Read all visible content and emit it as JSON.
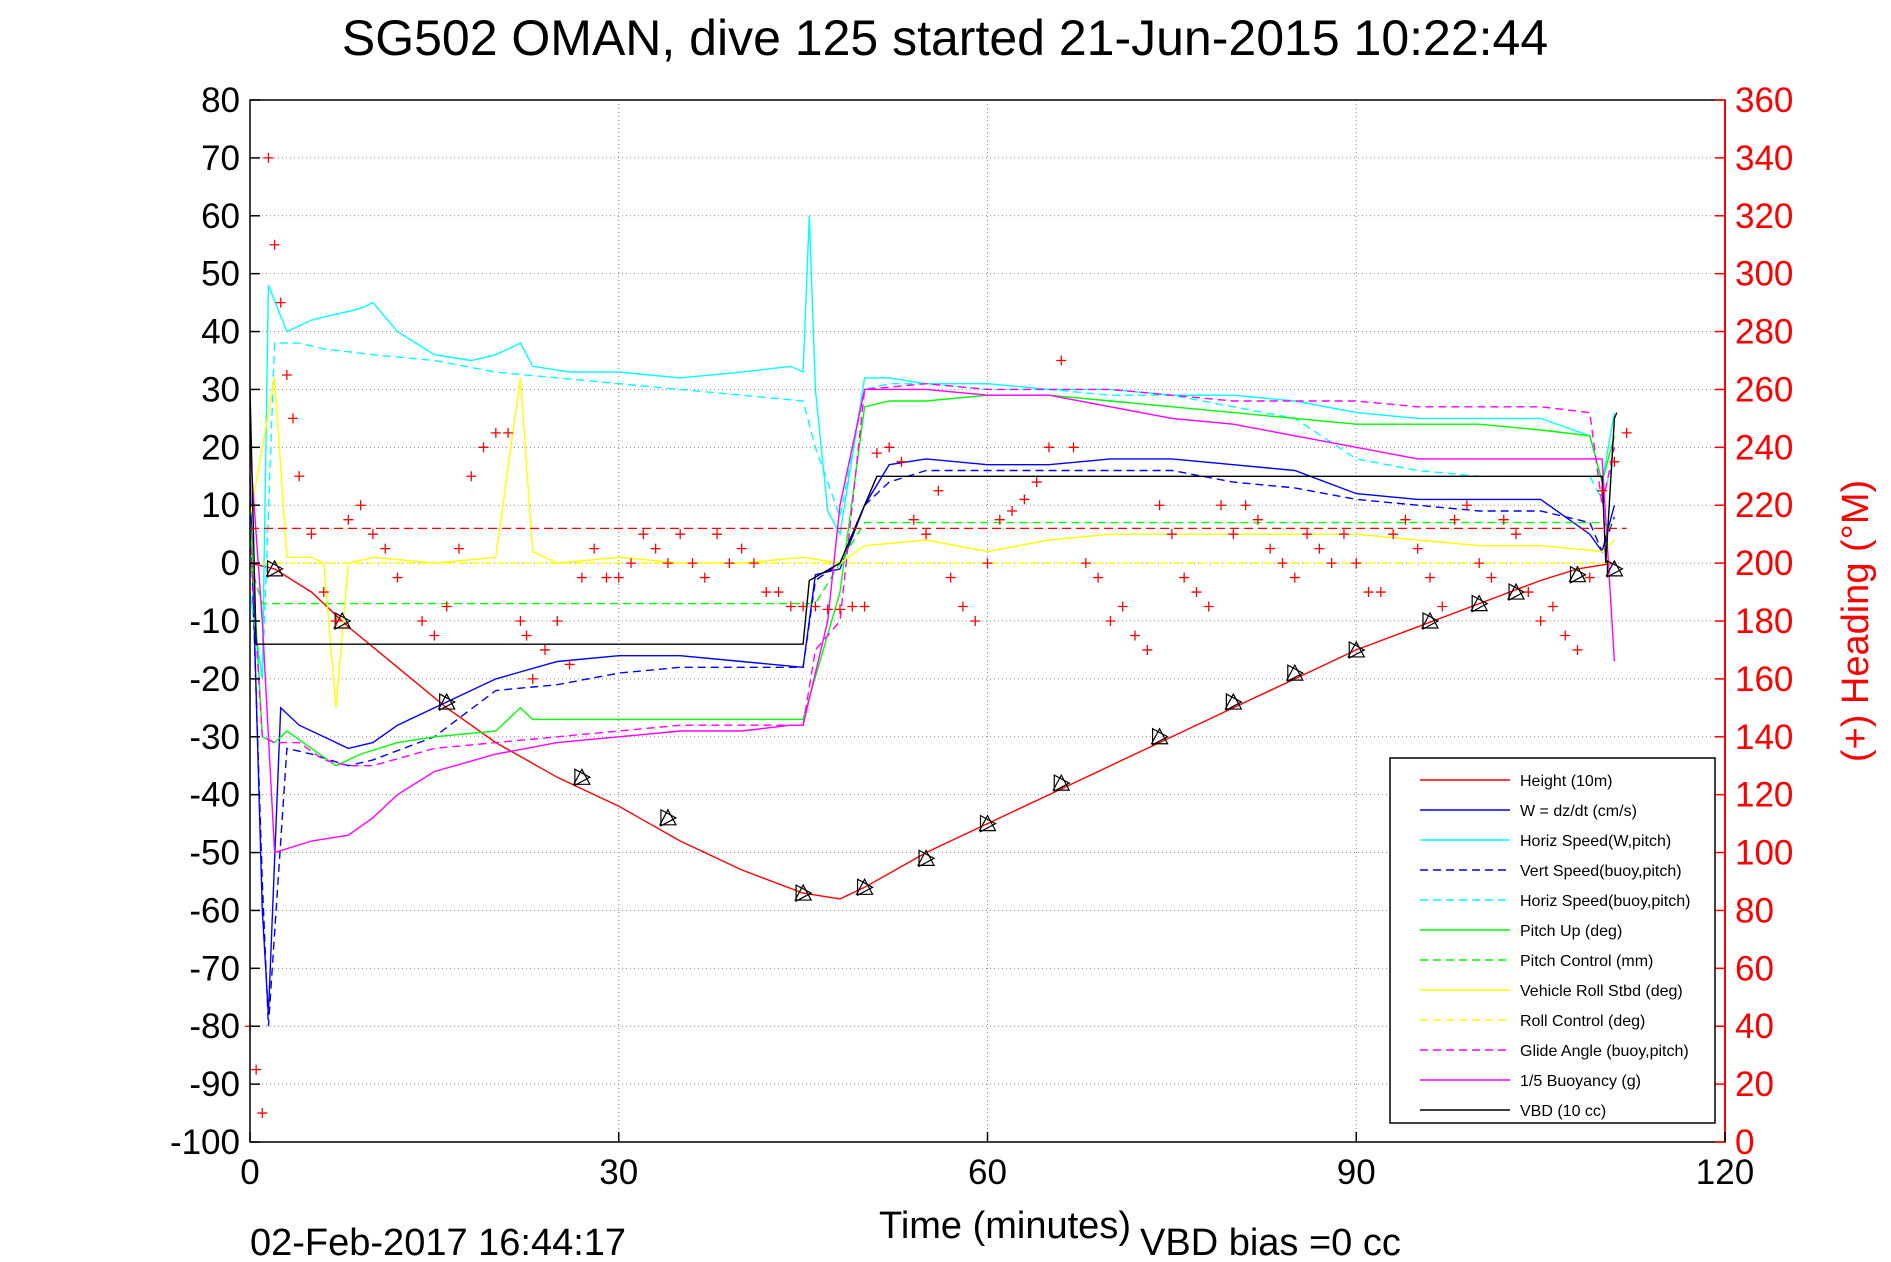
{
  "chart_data": {
    "type": "line",
    "title": "SG502 OMAN, dive 125 started 21-Jun-2015 10:22:44",
    "xlabel": "Time (minutes)",
    "ylabel_right": "(+) Heading (°M)",
    "footer_left": "02-Feb-2017 16:44:17",
    "footer_right": "VBD bias =0 cc",
    "xlim": [
      0,
      120
    ],
    "ylim_left": [
      -100,
      80
    ],
    "ylim_right": [
      0,
      360
    ],
    "x_ticks": [
      "0",
      "30",
      "60",
      "90",
      "120"
    ],
    "y_left_ticks": [
      "80",
      "70",
      "60",
      "50",
      "40",
      "30",
      "20",
      "10",
      "0",
      "-10",
      "-20",
      "-30",
      "-40",
      "-50",
      "-60",
      "-70",
      "-80",
      "-90",
      "-100"
    ],
    "y_right_ticks": [
      "360",
      "340",
      "320",
      "300",
      "280",
      "260",
      "240",
      "220",
      "200",
      "180",
      "160",
      "140",
      "120",
      "100",
      "80",
      "60",
      "40",
      "20",
      "0"
    ],
    "grid": true,
    "legend_position": "bottom-right",
    "colors": {
      "height": "#ff0000",
      "w": "#0000ff",
      "horiz_w": "#00ffff",
      "vert_buoy": "#0000ff",
      "horiz_buoy": "#00ffff",
      "pitch": "#00ff00",
      "pitch_ctrl": "#00ff00",
      "roll": "#ffff00",
      "roll_ctrl": "#ffff00",
      "glide": "#ff00ff",
      "buoyancy": "#ff00ff",
      "vbd": "#000000",
      "heading": "#ff0000",
      "right_axis": "#ff0000"
    },
    "series": [
      {
        "name": "Height (10m)",
        "color": "#ff0000",
        "style": "solid",
        "x": [
          0,
          2,
          5,
          8,
          12,
          16,
          20,
          25,
          30,
          35,
          40,
          45,
          48,
          50,
          55,
          60,
          65,
          70,
          75,
          80,
          85,
          90,
          95,
          100,
          105,
          108,
          111
        ],
        "y": [
          0,
          -1,
          -5,
          -11,
          -18,
          -25,
          -31,
          -37,
          -42,
          -48,
          -53,
          -57,
          -58,
          -56,
          -50,
          -45,
          -40,
          -35,
          -30,
          -25,
          -20,
          -15,
          -11,
          -7,
          -3,
          -1,
          0
        ]
      },
      {
        "name": "W = dz/dt (cm/s)",
        "color": "#0000ff",
        "style": "solid",
        "x": [
          0,
          1,
          1.5,
          2.5,
          4,
          6,
          8,
          10,
          12,
          16,
          20,
          25,
          30,
          35,
          40,
          45,
          46,
          48,
          50,
          52,
          55,
          60,
          65,
          70,
          75,
          80,
          85,
          90,
          95,
          100,
          105,
          109,
          110,
          111
        ],
        "y": [
          15,
          -60,
          -78,
          -25,
          -28,
          -30,
          -32,
          -31,
          -28,
          -24,
          -20,
          -17,
          -16,
          -16,
          -17,
          -18,
          -2,
          -1,
          10,
          17,
          18,
          17,
          17,
          18,
          18,
          17,
          16,
          12,
          11,
          11,
          11,
          5,
          2,
          10
        ]
      },
      {
        "name": "Horiz Speed(W,pitch)",
        "color": "#00ffff",
        "style": "solid",
        "x": [
          0,
          1,
          1.5,
          3,
          5,
          7,
          9,
          10,
          12,
          15,
          18,
          20,
          22,
          23,
          26,
          30,
          35,
          40,
          44,
          45,
          45.5,
          46,
          47,
          48,
          50,
          52,
          55,
          60,
          65,
          70,
          75,
          80,
          85,
          90,
          95,
          100,
          105,
          109,
          110,
          111
        ],
        "y": [
          -5,
          -20,
          48,
          40,
          42,
          43,
          44,
          45,
          40,
          36,
          35,
          36,
          38,
          34,
          33,
          33,
          32,
          33,
          34,
          33,
          60,
          30,
          9,
          5,
          32,
          32,
          31,
          31,
          30,
          30,
          29,
          29,
          28,
          26,
          25,
          25,
          25,
          22,
          14,
          26
        ]
      },
      {
        "name": "Vert Speed(buoy,pitch)",
        "color": "#0000ff",
        "style": "dashed",
        "x": [
          0,
          1,
          1.5,
          3,
          5,
          8,
          10,
          15,
          20,
          25,
          30,
          35,
          40,
          45,
          46,
          48,
          50,
          52,
          55,
          60,
          65,
          70,
          75,
          80,
          85,
          90,
          95,
          100,
          105,
          109,
          110,
          111
        ],
        "y": [
          10,
          -55,
          -80,
          -32,
          -33,
          -35,
          -34,
          -30,
          -22,
          -21,
          -19,
          -18,
          -18,
          -18,
          -3,
          0,
          10,
          14,
          16,
          16,
          16,
          16,
          16,
          14,
          13,
          11,
          10,
          9,
          9,
          7,
          2,
          8
        ]
      },
      {
        "name": "Horiz Speed(buoy,pitch)",
        "color": "#00ffff",
        "style": "dashed",
        "x": [
          0,
          1,
          2,
          4,
          6,
          10,
          15,
          20,
          25,
          30,
          35,
          40,
          45,
          46,
          48,
          50,
          52,
          55,
          60,
          65,
          70,
          75,
          80,
          85,
          90,
          95,
          100,
          105,
          109,
          110,
          111
        ],
        "y": [
          -5,
          -20,
          38,
          38,
          37,
          36,
          35,
          33,
          32,
          31,
          30,
          29,
          28,
          20,
          8,
          30,
          31,
          31,
          30,
          30,
          29,
          29,
          27,
          25,
          18,
          16,
          15,
          15,
          15,
          11,
          18
        ]
      },
      {
        "name": "Pitch Up (deg)",
        "color": "#00ff00",
        "style": "solid",
        "x": [
          0,
          1,
          2,
          3,
          5,
          7,
          9,
          12,
          15,
          20,
          22,
          23,
          25,
          30,
          35,
          40,
          44,
          45,
          48,
          50,
          52,
          55,
          60,
          65,
          70,
          75,
          80,
          85,
          90,
          95,
          100,
          105,
          109,
          110,
          111
        ],
        "y": [
          8,
          -30,
          -31,
          -29,
          -32,
          -35,
          -33,
          -31,
          -30,
          -29,
          -25,
          -27,
          -27,
          -27,
          -27,
          -27,
          -27,
          -27,
          -5,
          27,
          28,
          28,
          29,
          29,
          28,
          27,
          26,
          25,
          24,
          24,
          24,
          23,
          22,
          14,
          22
        ]
      },
      {
        "name": "Pitch Control (mm)",
        "color": "#00ff00",
        "style": "dashed",
        "x": [
          0,
          1,
          2,
          45,
          46,
          48,
          50,
          110,
          111
        ],
        "y": [
          0,
          -7,
          -7,
          -7,
          -7,
          0,
          7,
          7,
          6
        ]
      },
      {
        "name": "Vehicle Roll Stbd (deg)",
        "color": "#ffff00",
        "style": "solid",
        "x": [
          0,
          2,
          3,
          5,
          6,
          7,
          8,
          10,
          15,
          20,
          22,
          23,
          25,
          30,
          35,
          40,
          45,
          48,
          50,
          55,
          60,
          65,
          70,
          75,
          80,
          85,
          90,
          95,
          100,
          105,
          110,
          111
        ],
        "y": [
          8,
          32,
          1,
          1,
          0,
          -25,
          0,
          1,
          0,
          1,
          32,
          2,
          0,
          1,
          0,
          0,
          1,
          0,
          3,
          4,
          2,
          4,
          5,
          5,
          5,
          5,
          5,
          4,
          3,
          3,
          2,
          4
        ]
      },
      {
        "name": "Roll Control (deg)",
        "color": "#ffff00",
        "style": "dashed",
        "x": [
          0,
          110,
          111
        ],
        "y": [
          0,
          0,
          0
        ]
      },
      {
        "name": "Glide Angle (buoy,pitch)",
        "color": "#ff00ff",
        "style": "dashed",
        "x": [
          0,
          1,
          2,
          4,
          6,
          8,
          10,
          15,
          20,
          25,
          30,
          35,
          40,
          45,
          46,
          48,
          50,
          55,
          60,
          65,
          70,
          75,
          80,
          85,
          90,
          95,
          100,
          105,
          109,
          110,
          111
        ],
        "y": [
          5,
          -30,
          -31,
          -31,
          -34,
          -35,
          -35,
          -32,
          -31,
          -30,
          -29,
          -28,
          -28,
          -28,
          -15,
          -10,
          30,
          31,
          30,
          30,
          30,
          29,
          28,
          28,
          28,
          27,
          27,
          27,
          26,
          10,
          20
        ]
      },
      {
        "name": "1/5 Buoyancy (g)",
        "color": "#ff00ff",
        "style": "solid",
        "x": [
          0,
          1,
          2,
          5,
          8,
          10,
          12,
          15,
          20,
          25,
          30,
          35,
          40,
          44,
          45,
          47,
          48,
          50,
          55,
          60,
          65,
          70,
          75,
          80,
          85,
          90,
          95,
          100,
          105,
          108,
          110,
          111
        ],
        "y": [
          20,
          -10,
          -50,
          -48,
          -47,
          -44,
          -40,
          -36,
          -33,
          -31,
          -30,
          -29,
          -29,
          -28,
          -28,
          -10,
          10,
          30,
          30,
          29,
          29,
          27,
          25,
          24,
          22,
          20,
          18,
          18,
          18,
          18,
          18,
          -17
        ]
      },
      {
        "name": "VBD (10 cc)",
        "color": "#000000",
        "style": "solid",
        "x": [
          0,
          0.5,
          1.5,
          45,
          45.5,
          48,
          51,
          110,
          110.3,
          111,
          111.2
        ],
        "y": [
          30,
          -14,
          -14,
          -14,
          -3,
          0,
          15,
          15,
          0,
          25,
          26
        ]
      }
    ],
    "heading": {
      "name": "(+) Heading (°M)",
      "axis": "right",
      "color": "#ff0000",
      "marker": "+",
      "x": [
        0,
        0.5,
        1,
        1.5,
        2,
        2.5,
        3,
        3.5,
        4,
        5,
        6,
        7,
        8,
        9,
        10,
        11,
        12,
        14,
        15,
        16,
        17,
        18,
        19,
        20,
        21,
        22,
        22.5,
        23,
        24,
        25,
        26,
        27,
        28,
        29,
        30,
        31,
        32,
        33,
        34,
        35,
        36,
        37,
        38,
        39,
        40,
        41,
        42,
        43,
        44,
        45,
        46,
        47,
        48,
        49,
        50,
        51,
        52,
        53,
        54,
        55,
        56,
        57,
        58,
        59,
        60,
        61,
        62,
        63,
        64,
        65,
        66,
        67,
        68,
        69,
        70,
        71,
        72,
        73,
        74,
        75,
        76,
        77,
        78,
        79,
        80,
        81,
        82,
        83,
        84,
        85,
        86,
        87,
        88,
        89,
        90,
        91,
        92,
        93,
        94,
        95,
        96,
        97,
        98,
        99,
        100,
        101,
        102,
        103,
        104,
        105,
        106,
        107,
        108,
        109,
        110,
        111,
        112
      ],
      "y": [
        40,
        25,
        10,
        340,
        310,
        290,
        265,
        250,
        230,
        210,
        190,
        180,
        215,
        220,
        210,
        205,
        195,
        180,
        175,
        185,
        205,
        230,
        240,
        245,
        245,
        180,
        175,
        160,
        170,
        180,
        165,
        195,
        205,
        195,
        195,
        200,
        210,
        205,
        200,
        210,
        200,
        195,
        210,
        200,
        205,
        200,
        190,
        190,
        185,
        185,
        185,
        184,
        184,
        185,
        185,
        238,
        240,
        235,
        215,
        210,
        225,
        195,
        185,
        180,
        200,
        215,
        218,
        222,
        228,
        240,
        270,
        240,
        200,
        195,
        180,
        185,
        175,
        170,
        220,
        210,
        195,
        190,
        185,
        220,
        210,
        220,
        215,
        205,
        200,
        195,
        210,
        205,
        200,
        210,
        200,
        190,
        190,
        210,
        215,
        205,
        195,
        185,
        215,
        220,
        200,
        195,
        215,
        210,
        190,
        180,
        185,
        175,
        170,
        195,
        225,
        235,
        245
      ]
    },
    "height_markers": {
      "x": [
        2,
        7.5,
        16,
        27,
        34,
        45,
        50,
        55,
        60,
        66,
        74,
        80,
        85,
        90,
        96,
        100,
        103,
        108,
        111
      ],
      "y": [
        -1,
        -10,
        -24,
        -37,
        -44,
        -57,
        -56,
        -51,
        -45,
        -38,
        -30,
        -24,
        -19,
        -15,
        -10,
        -7,
        -5,
        -2,
        -1
      ]
    }
  }
}
